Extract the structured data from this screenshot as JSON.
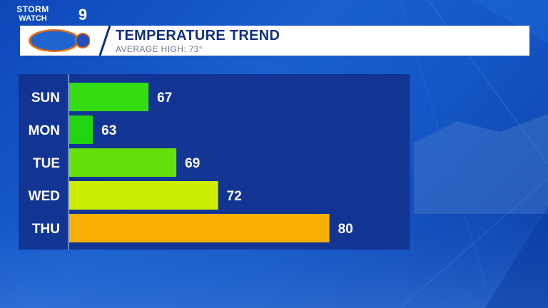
{
  "header": {
    "logo_top": "STORM",
    "logo_bottom": "WATCH",
    "logo_number": "9",
    "title": "TEMPERATURE TREND",
    "subtitle": "AVERAGE HIGH: 73°"
  },
  "colors": {
    "sun": "#33dd11",
    "mon": "#22d40f",
    "tue": "#66e00a",
    "wed": "#ccee00",
    "thu": "#f7ae00",
    "title": "#12317a",
    "panel": "#12308c"
  },
  "chart_data": {
    "type": "bar",
    "orientation": "horizontal",
    "categories": [
      "SUN",
      "MON",
      "TUE",
      "WED",
      "THU"
    ],
    "values": [
      67,
      63,
      69,
      72,
      80
    ],
    "bar_colors": [
      "#33dd11",
      "#22d40f",
      "#66e00a",
      "#ccee00",
      "#f7ae00"
    ],
    "xlim": [
      60,
      82
    ],
    "grid": false,
    "data_labels": true
  }
}
